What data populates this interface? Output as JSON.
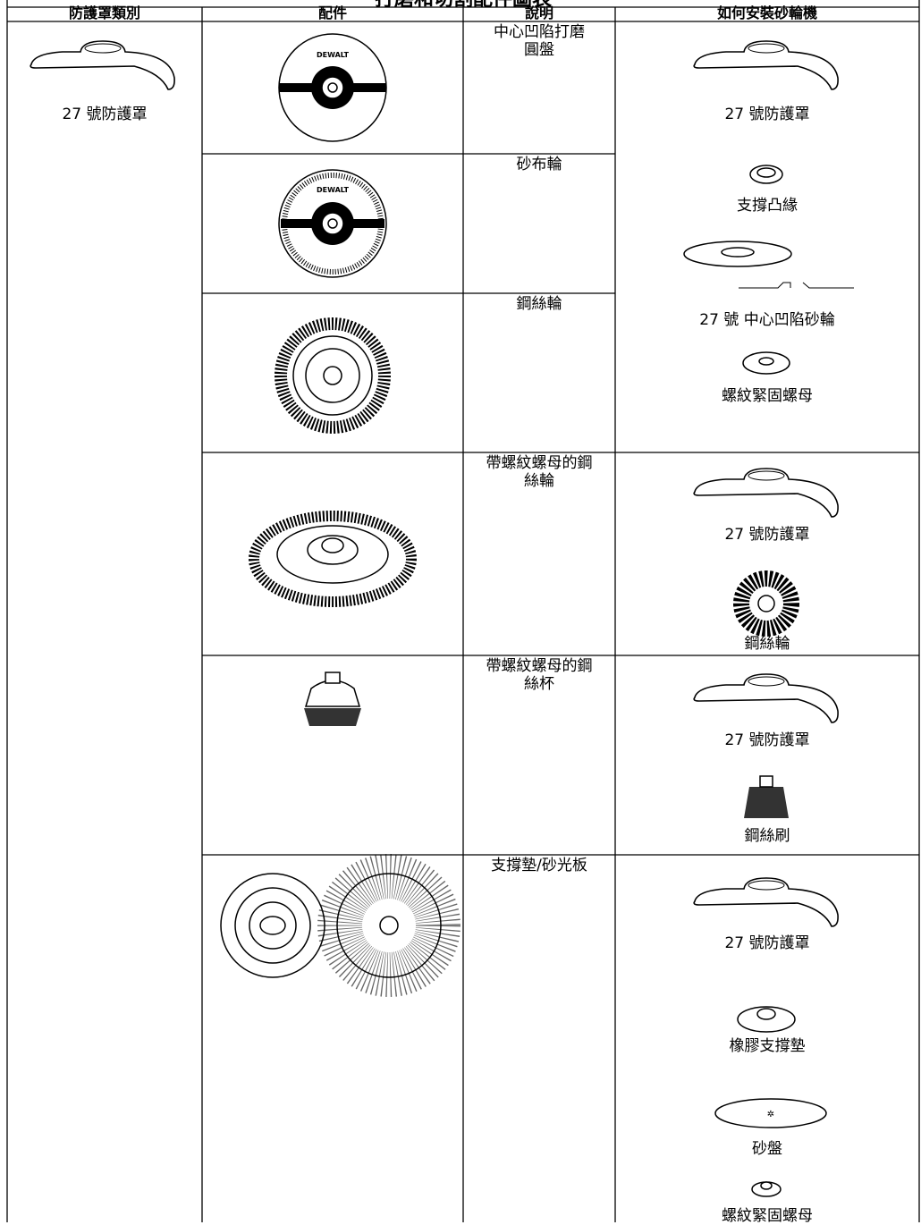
{
  "title": "打磨和切割配件圖表",
  "headers": [
    "防護罩類別",
    "配件",
    "說明",
    "如何安裝砂輪機"
  ],
  "guard_type": "27 號防護罩",
  "brand_labels": [
    "DEWALT",
    "DEWALT"
  ],
  "rows": [
    {
      "description": [
        "中心凹陷打磨",
        "圓盤"
      ]
    },
    {
      "description": [
        "砂布輪"
      ]
    },
    {
      "description": [
        "鋼絲輪"
      ]
    },
    {
      "description": [
        "帶螺紋螺母的鋼",
        "絲輪"
      ]
    },
    {
      "description": [
        "帶螺紋螺母的鋼",
        "絲杯"
      ]
    },
    {
      "description": [
        "支撐墊/砂光板"
      ]
    }
  ],
  "install_groups": [
    [
      "27 號防護罩",
      "支撐凸緣",
      "27 號 中心凹陷砂輪",
      "螺紋緊固螺母"
    ],
    [
      "27 號防護罩",
      "鋼絲輪"
    ],
    [
      "27 號防護罩",
      "鋼絲刷"
    ],
    [
      "27 號防護罩",
      "橡膠支撐墊",
      "砂盤",
      "螺紋緊固螺母"
    ]
  ]
}
